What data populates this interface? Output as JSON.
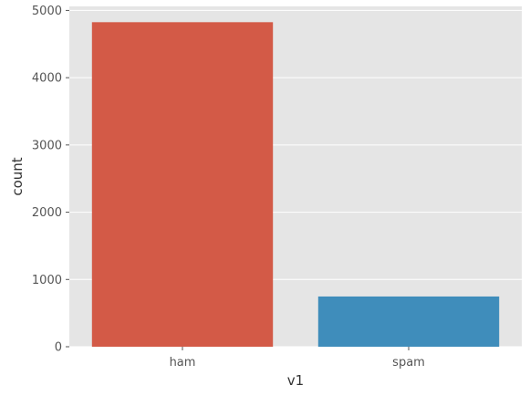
{
  "chart_data": {
    "type": "bar",
    "categories": [
      "ham",
      "spam"
    ],
    "values": [
      4825,
      747
    ],
    "xlabel": "v1",
    "ylabel": "count",
    "ylim": [
      0,
      5060
    ],
    "yticks": [
      0,
      1000,
      2000,
      3000,
      4000,
      5000
    ],
    "grid": true,
    "colors": {
      "background": "#E5E5E5",
      "grid": "#FFFFFF",
      "bars": [
        "#D35A47",
        "#3F8DBB"
      ]
    }
  }
}
